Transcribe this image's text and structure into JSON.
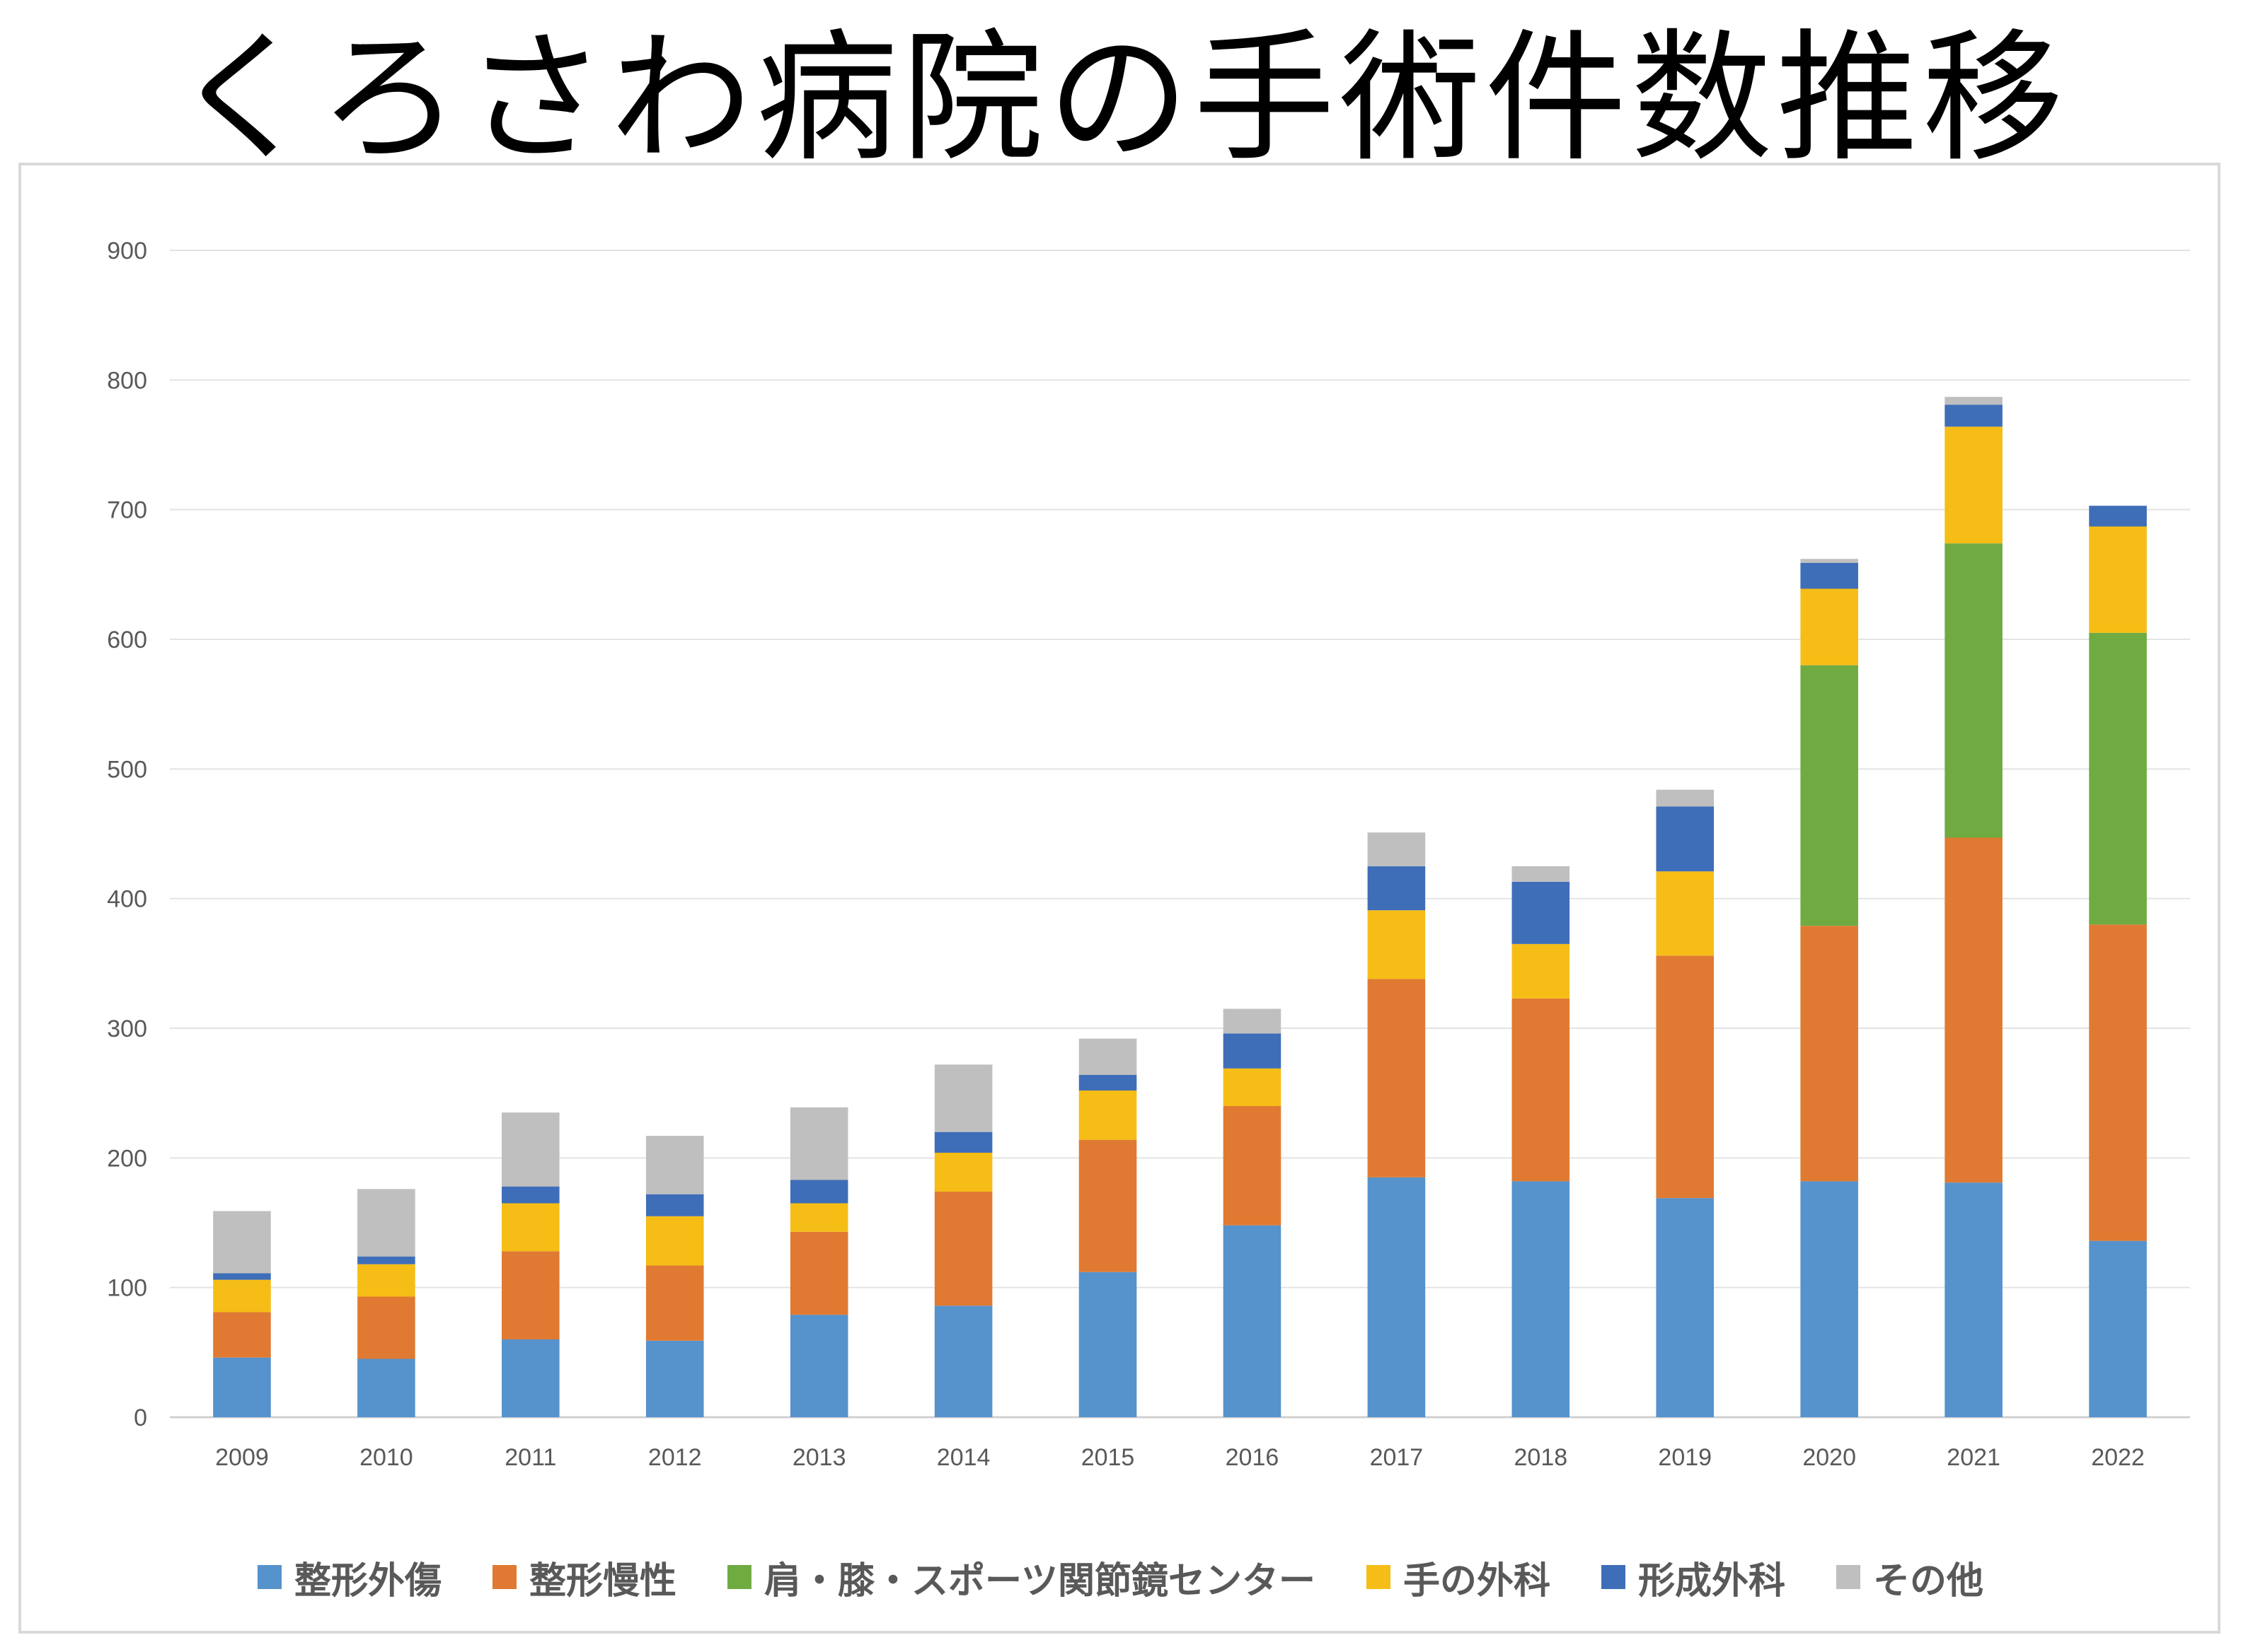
{
  "title": "くろさわ病院の手術件数推移",
  "chart_data": {
    "type": "bar",
    "stacked": true,
    "categories": [
      "2009",
      "2010",
      "2011",
      "2012",
      "2013",
      "2014",
      "2015",
      "2016",
      "2017",
      "2018",
      "2019",
      "2020",
      "2021",
      "2022"
    ],
    "ylim": [
      0,
      900
    ],
    "yticks": [
      0,
      100,
      200,
      300,
      400,
      500,
      600,
      700,
      800,
      900
    ],
    "grid": true,
    "legend_position": "bottom",
    "series": [
      {
        "name": "整形外傷",
        "color": "#5692CC",
        "values": [
          46,
          45,
          60,
          59,
          79,
          86,
          112,
          148,
          185,
          182,
          169,
          182,
          181,
          136
        ]
      },
      {
        "name": "整形慢性",
        "color": "#E07A32",
        "values": [
          35,
          48,
          68,
          58,
          64,
          88,
          102,
          92,
          153,
          141,
          187,
          197,
          266,
          244
        ]
      },
      {
        "name": "肩・膝・スポーツ関節鏡センター",
        "color": "#70AB42",
        "values": [
          0,
          0,
          0,
          0,
          0,
          0,
          0,
          0,
          0,
          0,
          0,
          201,
          227,
          225
        ]
      },
      {
        "name": "手の外科",
        "color": "#F5BD16",
        "values": [
          25,
          25,
          37,
          38,
          22,
          30,
          38,
          29,
          53,
          42,
          65,
          59,
          90,
          82
        ]
      },
      {
        "name": "形成外科",
        "color": "#3F6EB8",
        "values": [
          5,
          6,
          13,
          17,
          18,
          16,
          12,
          27,
          34,
          48,
          50,
          20,
          17,
          16
        ]
      },
      {
        "name": "その他",
        "color": "#BFBFBF",
        "values": [
          48,
          52,
          57,
          45,
          56,
          52,
          28,
          19,
          26,
          12,
          13,
          3,
          6,
          0
        ]
      }
    ]
  }
}
